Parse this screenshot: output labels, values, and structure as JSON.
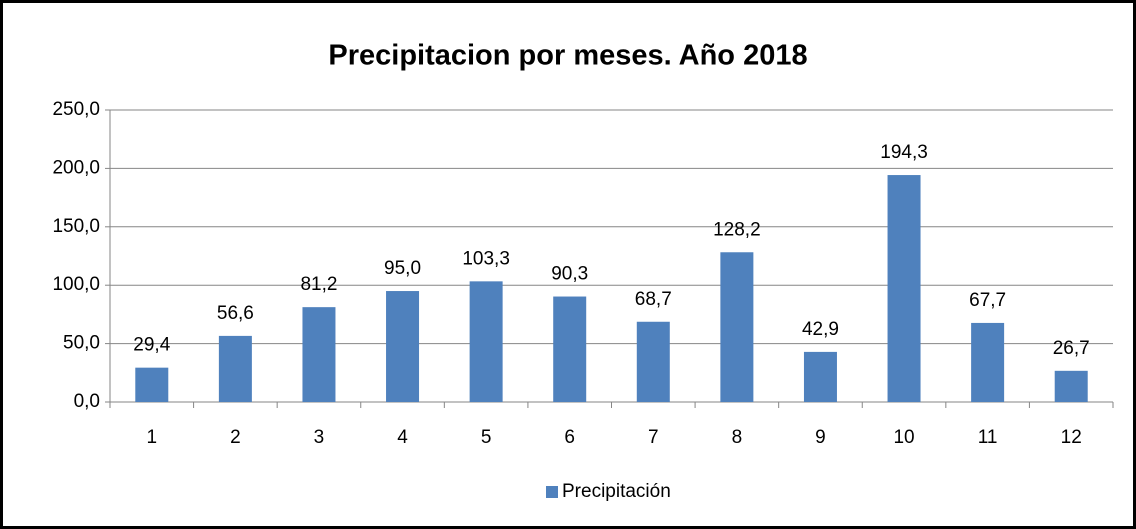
{
  "chart_data": {
    "type": "bar",
    "title": "Precipitacion por meses. Año 2018",
    "categories": [
      "1",
      "2",
      "3",
      "4",
      "5",
      "6",
      "7",
      "8",
      "9",
      "10",
      "11",
      "12"
    ],
    "series": [
      {
        "name": "Precipitación",
        "color": "#4f81bd",
        "values": [
          29.4,
          56.6,
          81.2,
          95.0,
          103.3,
          90.3,
          68.7,
          128.2,
          42.9,
          194.3,
          67.7,
          26.7
        ],
        "value_labels": [
          "29,4",
          "56,6",
          "81,2",
          "95,0",
          "103,3",
          "90,3",
          "68,7",
          "128,2",
          "42,9",
          "194,3",
          "67,7",
          "26,7"
        ]
      }
    ],
    "ylim": [
      0,
      250
    ],
    "yticks": [
      {
        "value": 0,
        "label": "0,0"
      },
      {
        "value": 50,
        "label": "50,0"
      },
      {
        "value": 100,
        "label": "100,0"
      },
      {
        "value": 150,
        "label": "150,0"
      },
      {
        "value": 200,
        "label": "200,0"
      },
      {
        "value": 250,
        "label": "250,0"
      }
    ],
    "grid": true,
    "legend": "bottom"
  }
}
